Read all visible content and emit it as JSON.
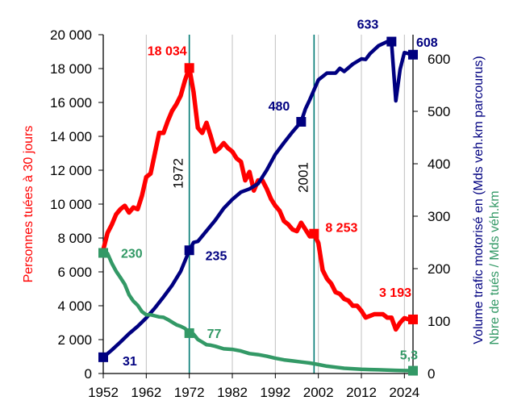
{
  "chart_data": {
    "type": "line",
    "title": "",
    "xlabel": "",
    "ylabel": "Personnes tuées à 30 jours",
    "y2label_line1": "Volume trafic motorisé en  (Mds veh.km parcourus)",
    "y2label_line2": "Nbre de tués / Mds véh.km",
    "x_ticks": [
      "1952",
      "1962",
      "1972",
      "1982",
      "1992",
      "2002",
      "2012",
      "2024"
    ],
    "y_ticks": [
      "0",
      "2 000",
      "4 000",
      "6 000",
      "8 000",
      "10 000",
      "12 000",
      "14 000",
      "16 000",
      "18 000",
      "20 000"
    ],
    "y2_ticks": [
      "0",
      "100",
      "200",
      "300",
      "400",
      "500",
      "600"
    ],
    "xlim": [
      1952,
      2024
    ],
    "ylim": [
      0,
      20000
    ],
    "y2lim": [
      0,
      650
    ],
    "grid": "vertical",
    "vertical_markers": [
      {
        "year": 1972,
        "label": "1972"
      },
      {
        "year": 2001,
        "label": "2001"
      }
    ],
    "colors": {
      "killed": "#ff0000",
      "traffic": "#000080",
      "rate": "#339966",
      "marker": "#007a73",
      "grid": "#c0c0c0"
    },
    "series": [
      {
        "name": "Personnes tuées à 30 jours",
        "axis": "left",
        "color": "#ff0000",
        "x": [
          1952,
          1953,
          1954,
          1955,
          1956,
          1957,
          1958,
          1959,
          1960,
          1961,
          1962,
          1963,
          1964,
          1965,
          1966,
          1967,
          1968,
          1969,
          1970,
          1971,
          1972,
          1973,
          1974,
          1975,
          1976,
          1977,
          1978,
          1979,
          1980,
          1981,
          1982,
          1983,
          1984,
          1985,
          1986,
          1987,
          1988,
          1989,
          1990,
          1991,
          1992,
          1993,
          1994,
          1995,
          1996,
          1997,
          1998,
          1999,
          2000,
          2001,
          2002,
          2003,
          2004,
          2005,
          2006,
          2007,
          2008,
          2009,
          2010,
          2011,
          2012,
          2013,
          2014,
          2015,
          2016,
          2017,
          2018,
          2019,
          2020,
          2021,
          2022,
          2023,
          2024
        ],
        "values": [
          7300,
          8300,
          8800,
          9400,
          9700,
          9900,
          9500,
          9800,
          9700,
          10500,
          11600,
          11800,
          13000,
          14200,
          14200,
          14900,
          15500,
          15900,
          16400,
          17300,
          18034,
          16600,
          14500,
          14200,
          14800,
          14000,
          13100,
          13300,
          13600,
          13300,
          13100,
          12700,
          12500,
          11400,
          11900,
          10800,
          11400,
          11400,
          10900,
          10300,
          9900,
          9600,
          9000,
          8800,
          8500,
          8400,
          8900,
          8500,
          8100,
          8253,
          7700,
          6100,
          5600,
          5300,
          4800,
          4700,
          4400,
          4300,
          4000,
          4000,
          3700,
          3300,
          3400,
          3500,
          3500,
          3500,
          3300,
          3300,
          2600,
          3000,
          3267,
          3200,
          3193
        ]
      },
      {
        "name": "Volume trafic motorisé (Mds veh.km)",
        "axis": "right",
        "color": "#000080",
        "x": [
          1952,
          1954,
          1956,
          1958,
          1960,
          1962,
          1964,
          1966,
          1968,
          1970,
          1972,
          1973,
          1974,
          1976,
          1978,
          1980,
          1982,
          1984,
          1986,
          1988,
          1990,
          1992,
          1994,
          1996,
          1998,
          1999,
          2000,
          2002,
          2004,
          2006,
          2007,
          2008,
          2010,
          2012,
          2013,
          2014,
          2016,
          2018,
          2019,
          2020,
          2021,
          2022,
          2024
        ],
        "values": [
          31,
          45,
          60,
          76,
          90,
          106,
          125,
          146,
          168,
          195,
          235,
          250,
          252,
          272,
          292,
          315,
          332,
          346,
          352,
          362,
          388,
          418,
          440,
          461,
          480,
          505,
          522,
          560,
          573,
          573,
          582,
          576,
          590,
          600,
          599,
          610,
          625,
          633,
          633,
          520,
          580,
          612,
          608
        ]
      },
      {
        "name": "Nbre de tués / Mds véh.km",
        "axis": "right",
        "color": "#339966",
        "x": [
          1952,
          1953,
          1954,
          1955,
          1956,
          1957,
          1958,
          1959,
          1960,
          1961,
          1962,
          1963,
          1964,
          1965,
          1966,
          1967,
          1968,
          1969,
          1970,
          1971,
          1972,
          1973,
          1974,
          1975,
          1976,
          1977,
          1978,
          1980,
          1982,
          1984,
          1986,
          1988,
          1990,
          1992,
          1994,
          1996,
          1998,
          2000,
          2002,
          2004,
          2006,
          2008,
          2010,
          2012,
          2014,
          2016,
          2018,
          2020,
          2022,
          2024
        ],
        "values": [
          230,
          229,
          210,
          195,
          183,
          170,
          150,
          138,
          130,
          118,
          112,
          112,
          110,
          108,
          107,
          103,
          98,
          93,
          90,
          86,
          77,
          75,
          65,
          60,
          55,
          54,
          52,
          47,
          46,
          43,
          38,
          36,
          33,
          29,
          26,
          24,
          22,
          20,
          17,
          14,
          12,
          10,
          9,
          8,
          7.5,
          7,
          6.5,
          6,
          5.5,
          5.3
        ]
      }
    ],
    "annotations": [
      {
        "text": "18 034",
        "series": "killed",
        "year": 1972,
        "color": "#ff0000"
      },
      {
        "text": "8 253",
        "series": "killed",
        "year": 2001,
        "color": "#ff0000"
      },
      {
        "text": "3 193",
        "series": "killed",
        "year": 2024,
        "color": "#ff0000"
      },
      {
        "text": "31",
        "series": "traffic",
        "year": 1952,
        "color": "#000080"
      },
      {
        "text": "235",
        "series": "traffic",
        "year": 1972,
        "color": "#000080"
      },
      {
        "text": "480",
        "series": "traffic",
        "year": 1998,
        "color": "#000080"
      },
      {
        "text": "633",
        "series": "traffic",
        "year": 2019,
        "color": "#000080"
      },
      {
        "text": "608",
        "series": "traffic",
        "year": 2024,
        "color": "#000080"
      },
      {
        "text": "230",
        "series": "rate",
        "year": 1952,
        "color": "#339966"
      },
      {
        "text": "77",
        "series": "rate",
        "year": 1972,
        "color": "#339966"
      },
      {
        "text": "5,3",
        "series": "rate",
        "year": 2024,
        "color": "#339966"
      }
    ]
  }
}
